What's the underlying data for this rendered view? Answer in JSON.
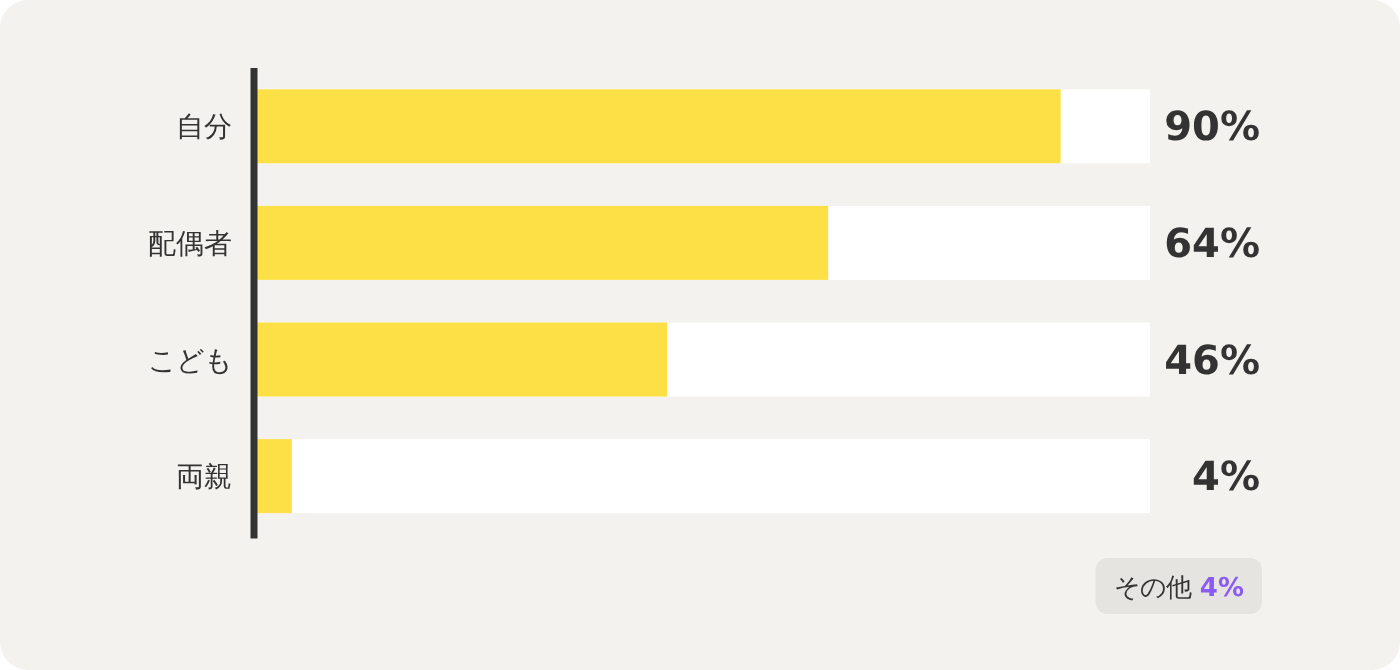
{
  "chart_data": {
    "type": "bar",
    "orientation": "horizontal",
    "categories": [
      "自分",
      "配偶者",
      "こども",
      "両親"
    ],
    "values": [
      90,
      64,
      46,
      4
    ],
    "color": "#fce045",
    "xlim": [
      0,
      100
    ],
    "tick_labels": "y",
    "value_labels": [
      "90%",
      "64%",
      "46%",
      "4%"
    ],
    "annotations": [
      "その他 4%"
    ]
  }
}
